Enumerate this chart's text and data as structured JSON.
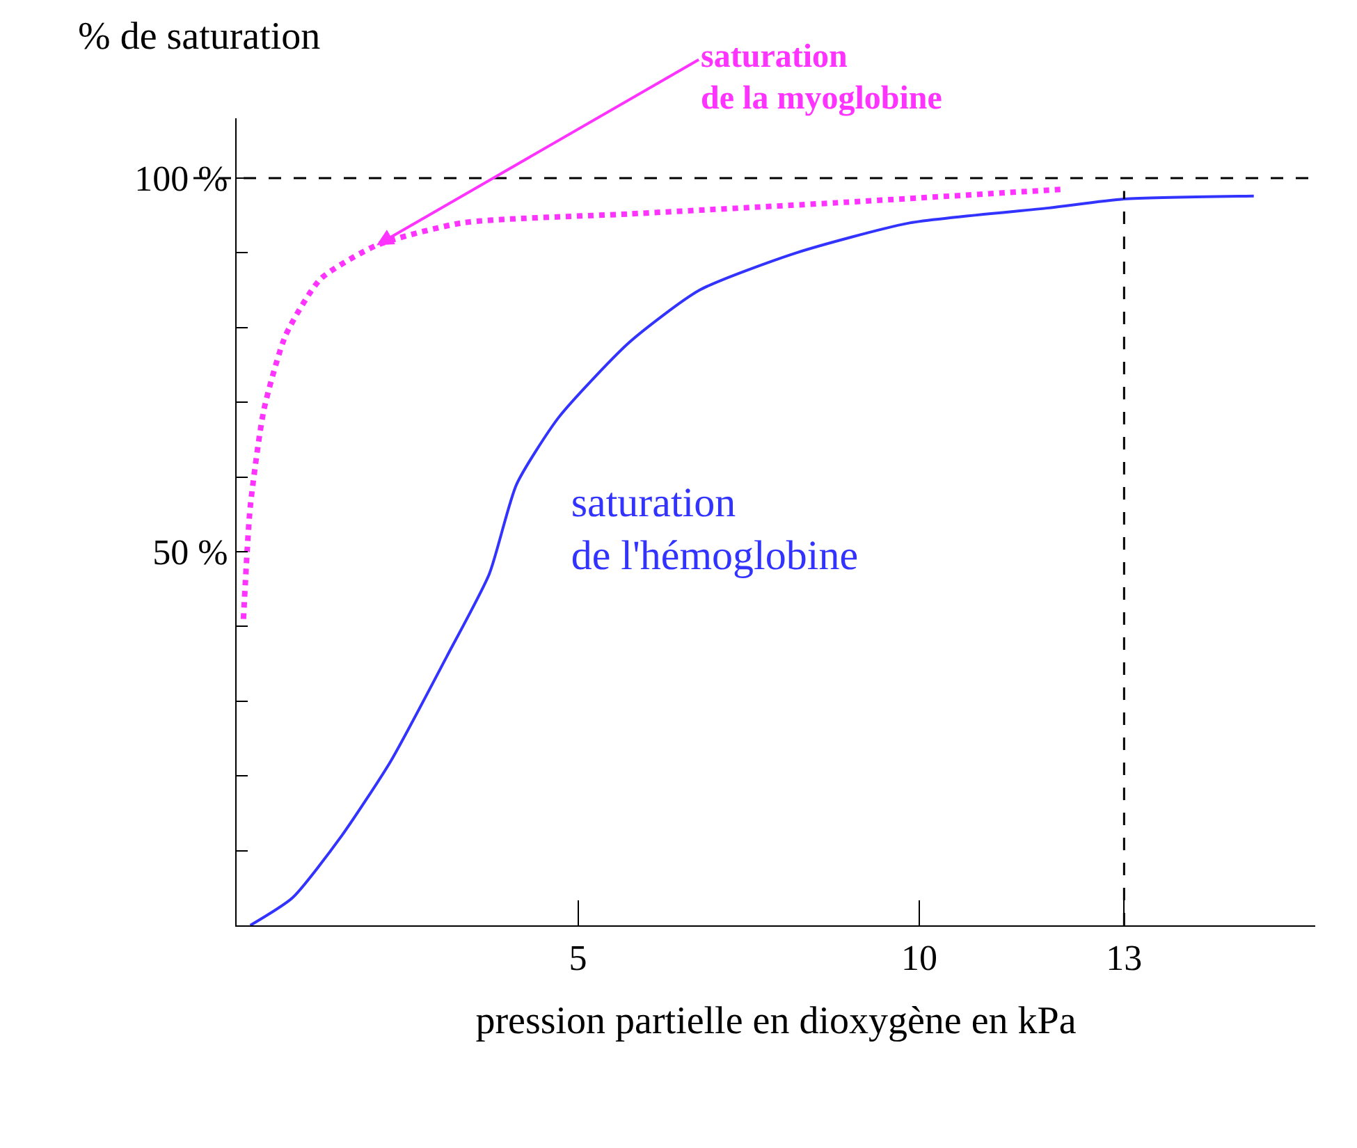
{
  "chart_data": {
    "type": "line",
    "xlabel": "pression partielle en dioxygène en kPa",
    "ylabel": "% de saturation",
    "xlim": [
      0,
      15.8
    ],
    "ylim": [
      0,
      108
    ],
    "xticks": [
      5,
      10,
      13
    ],
    "yticks": [
      {
        "value": 10,
        "label": null
      },
      {
        "value": 20,
        "label": null
      },
      {
        "value": 30,
        "label": null
      },
      {
        "value": 40,
        "label": null
      },
      {
        "value": 50,
        "label": "50 %"
      },
      {
        "value": 60,
        "label": null
      },
      {
        "value": 70,
        "label": null
      },
      {
        "value": 80,
        "label": null
      },
      {
        "value": 90,
        "label": null
      },
      {
        "value": 100,
        "label": "100 %"
      }
    ],
    "grid": false,
    "legend": false,
    "marker": "none",
    "series": [
      {
        "name": "saturation de l'hémoglobine",
        "color": "#3333ff",
        "line_style": "solid",
        "x": [
          0.2,
          0.82,
          1.54,
          2.26,
          3.08,
          3.7,
          4.1,
          4.72,
          5.75,
          6.78,
          8.2,
          9.86,
          11.9,
          13,
          14.9
        ],
        "values": [
          0,
          3.7,
          12,
          22,
          36,
          47,
          59,
          68,
          78,
          85,
          90,
          94,
          96,
          97.2,
          97.6
        ]
      },
      {
        "name": "saturation de la myoglobine",
        "color": "#ff33ff",
        "line_style": "dotted",
        "x": [
          0.1,
          0.2,
          0.4,
          0.72,
          1.23,
          2.05,
          3.3,
          5.75,
          8.8,
          12.1
        ],
        "values": [
          41,
          56,
          69,
          79,
          86.5,
          91,
          94,
          95.2,
          96.7,
          98.5
        ]
      }
    ],
    "ref_lines": [
      {
        "axis": "y",
        "value": 100,
        "color": "#000000",
        "line_style": "dashed"
      },
      {
        "axis": "x",
        "value": 13,
        "color": "#000000",
        "line_style": "dashed"
      }
    ]
  }
}
